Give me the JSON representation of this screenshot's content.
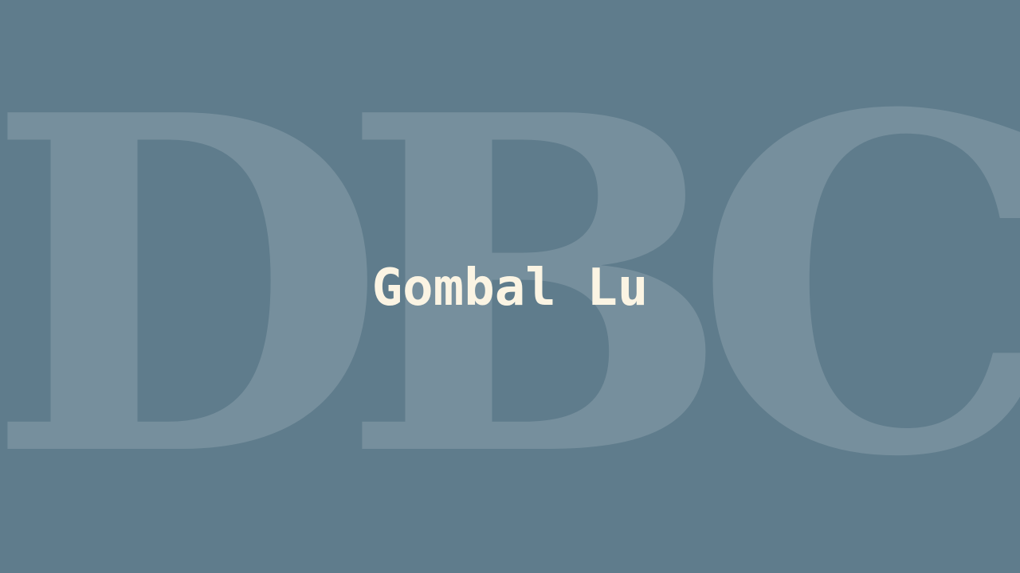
{
  "watermark": {
    "text": "DBC"
  },
  "title": {
    "text": "Gombal Lu"
  },
  "colors": {
    "background": "#5f7c8c",
    "title": "#fbf4e3",
    "watermark": "rgba(255,255,255,0.15)"
  }
}
